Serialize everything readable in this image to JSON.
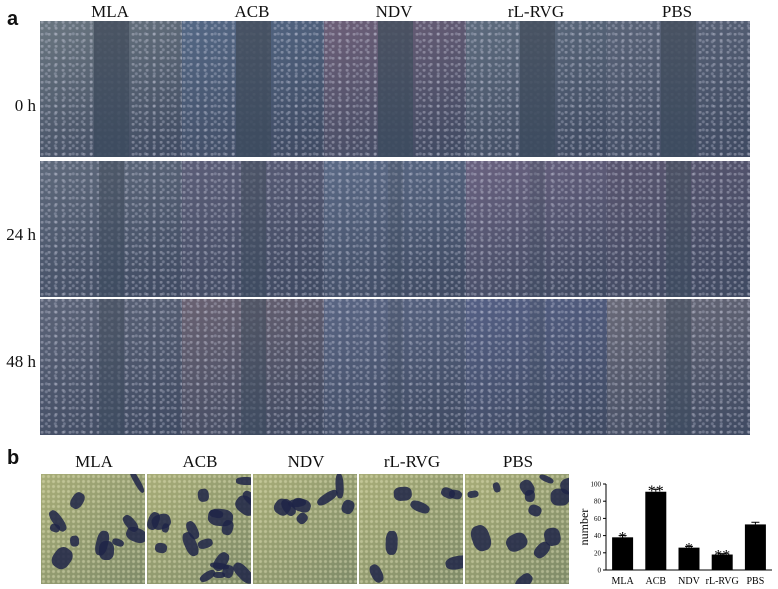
{
  "panel_a": {
    "letter": "a",
    "columns": [
      "MLA",
      "ACB",
      "NDV",
      "rL-RVG",
      "PBS"
    ],
    "rows": [
      "0 h",
      "24 h",
      "48 h"
    ]
  },
  "panel_b": {
    "letter": "b",
    "columns": [
      "MLA",
      "ACB",
      "NDV",
      "rL-RVG",
      "PBS"
    ]
  },
  "colors": {
    "bar_fill": "#000000",
    "tile_base": "#5a6480",
    "b_tile_base": "#9aa06a",
    "stain": "#1e2548"
  },
  "chart_data": {
    "type": "bar",
    "categories": [
      "MLA",
      "ACB",
      "NDV",
      "rL-RVG",
      "PBS"
    ],
    "values": [
      38,
      91,
      26,
      18,
      53
    ],
    "errors": [
      2,
      3,
      1.5,
      1,
      2.5
    ],
    "significance": [
      "*",
      "**",
      "*",
      "**",
      ""
    ],
    "ylabel": "number",
    "ylim": [
      0,
      100
    ],
    "yticks": [
      0,
      20,
      40,
      60,
      80,
      100
    ]
  }
}
